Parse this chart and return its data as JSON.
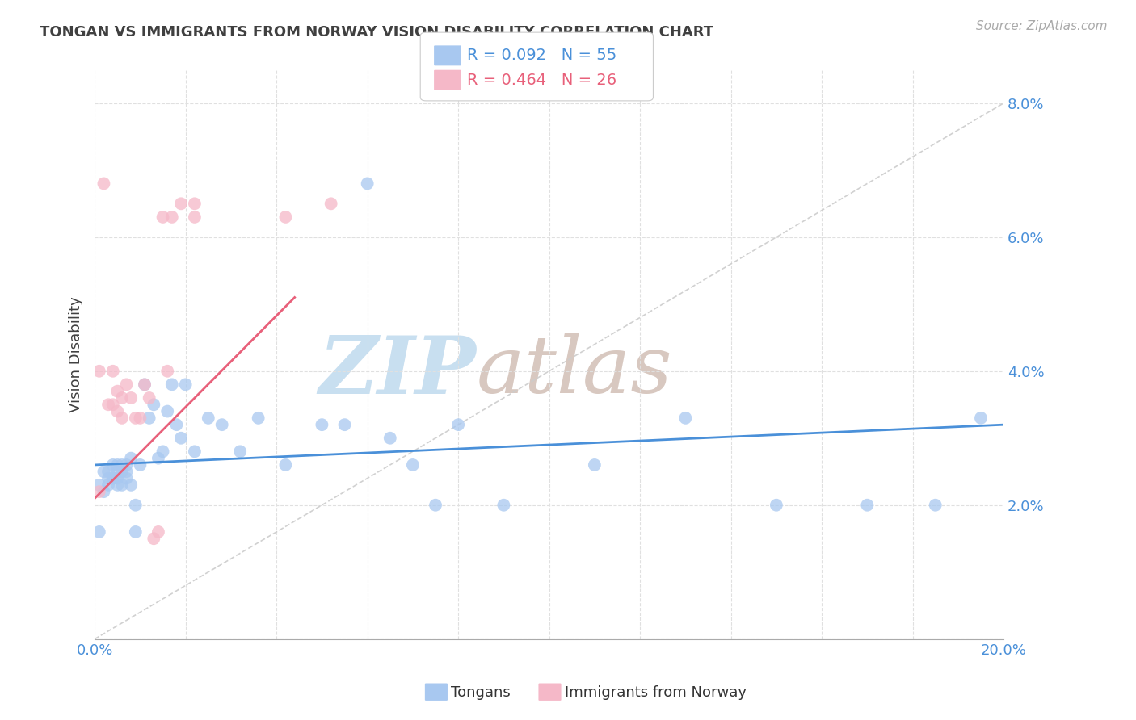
{
  "title": "TONGAN VS IMMIGRANTS FROM NORWAY VISION DISABILITY CORRELATION CHART",
  "source": "Source: ZipAtlas.com",
  "ylabel": "Vision Disability",
  "xmin": 0.0,
  "xmax": 0.2,
  "ymin": 0.0,
  "ymax": 0.085,
  "yticks": [
    0.0,
    0.02,
    0.04,
    0.06,
    0.08
  ],
  "blue_R": 0.092,
  "blue_N": 55,
  "pink_R": 0.464,
  "pink_N": 26,
  "blue_color": "#a8c8f0",
  "pink_color": "#f5b8c8",
  "blue_line_color": "#4a90d9",
  "pink_line_color": "#e8607a",
  "legend_blue_color": "#4a90d9",
  "legend_pink_color": "#e8607a",
  "title_color": "#404040",
  "ylabel_color": "#404040",
  "tick_label_color": "#4a90d9",
  "grid_color": "#e0e0e0",
  "watermark_zip_color": "#c8dff0",
  "watermark_atlas_color": "#d8c8c0",
  "tongans_x": [
    0.001,
    0.001,
    0.002,
    0.002,
    0.003,
    0.003,
    0.003,
    0.004,
    0.004,
    0.004,
    0.005,
    0.005,
    0.005,
    0.005,
    0.006,
    0.006,
    0.006,
    0.007,
    0.007,
    0.007,
    0.008,
    0.008,
    0.009,
    0.009,
    0.01,
    0.011,
    0.012,
    0.013,
    0.014,
    0.015,
    0.016,
    0.017,
    0.018,
    0.019,
    0.02,
    0.022,
    0.025,
    0.028,
    0.032,
    0.036,
    0.042,
    0.05,
    0.06,
    0.07,
    0.08,
    0.055,
    0.065,
    0.075,
    0.09,
    0.11,
    0.13,
    0.15,
    0.17,
    0.185,
    0.195
  ],
  "tongans_y": [
    0.016,
    0.023,
    0.022,
    0.025,
    0.024,
    0.023,
    0.025,
    0.024,
    0.026,
    0.024,
    0.023,
    0.025,
    0.024,
    0.026,
    0.025,
    0.023,
    0.026,
    0.025,
    0.024,
    0.026,
    0.027,
    0.023,
    0.016,
    0.02,
    0.026,
    0.038,
    0.033,
    0.035,
    0.027,
    0.028,
    0.034,
    0.038,
    0.032,
    0.03,
    0.038,
    0.028,
    0.033,
    0.032,
    0.028,
    0.033,
    0.026,
    0.032,
    0.068,
    0.026,
    0.032,
    0.032,
    0.03,
    0.02,
    0.02,
    0.026,
    0.033,
    0.02,
    0.02,
    0.02,
    0.033
  ],
  "norway_x": [
    0.001,
    0.001,
    0.002,
    0.003,
    0.004,
    0.004,
    0.005,
    0.005,
    0.006,
    0.006,
    0.007,
    0.008,
    0.009,
    0.01,
    0.011,
    0.012,
    0.013,
    0.014,
    0.015,
    0.016,
    0.017,
    0.019,
    0.022,
    0.022,
    0.042,
    0.052
  ],
  "norway_y": [
    0.022,
    0.04,
    0.068,
    0.035,
    0.035,
    0.04,
    0.034,
    0.037,
    0.033,
    0.036,
    0.038,
    0.036,
    0.033,
    0.033,
    0.038,
    0.036,
    0.015,
    0.016,
    0.063,
    0.04,
    0.063,
    0.065,
    0.065,
    0.063,
    0.063,
    0.065
  ],
  "blue_trend_x": [
    0.0,
    0.2
  ],
  "blue_trend_y_start": 0.026,
  "blue_trend_y_end": 0.032,
  "pink_trend_x_start": 0.0,
  "pink_trend_x_end": 0.044,
  "pink_trend_y_start": 0.021,
  "pink_trend_y_end": 0.051
}
